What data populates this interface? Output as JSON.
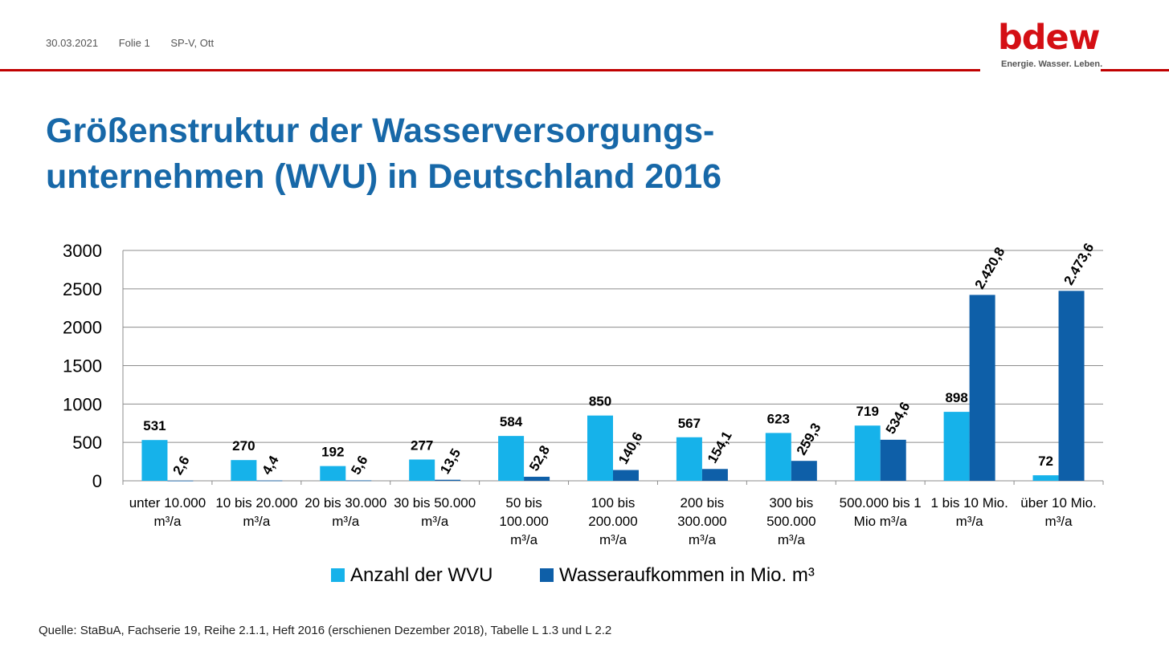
{
  "header": {
    "date": "30.03.2021",
    "slide": "Folie 1",
    "author": "SP-V, Ott",
    "logo_text": "bdew",
    "logo_tagline": "Energie. Wasser. Leben."
  },
  "title": {
    "line1": "Größenstruktur der Wasserversorgungs-",
    "line2": "unternehmen (WVU) in Deutschland 2016"
  },
  "colors": {
    "accent": "#c00000",
    "title": "#1768a8",
    "series1": "#16b2ea",
    "series2": "#0e5fa8"
  },
  "chart_data": {
    "type": "bar",
    "categories": [
      [
        "unter 10.000",
        "m³/a"
      ],
      [
        "10 bis 20.000",
        "m³/a"
      ],
      [
        "20 bis 30.000",
        "m³/a"
      ],
      [
        "30 bis 50.000",
        "m³/a"
      ],
      [
        "50 bis",
        "100.000",
        "m³/a"
      ],
      [
        "100 bis",
        "200.000",
        "m³/a"
      ],
      [
        "200 bis",
        "300.000",
        "m³/a"
      ],
      [
        "300 bis",
        "500.000",
        "m³/a"
      ],
      [
        "500.000 bis 1",
        "Mio m³/a"
      ],
      [
        "1 bis 10 Mio.",
        "m³/a"
      ],
      [
        "über 10 Mio.",
        "m³/a"
      ]
    ],
    "series": [
      {
        "name": "Anzahl der WVU",
        "values": [
          531,
          270,
          192,
          277,
          584,
          850,
          567,
          623,
          719,
          898,
          72
        ],
        "labels": [
          "531",
          "270",
          "192",
          "277",
          "584",
          "850",
          "567",
          "623",
          "719",
          "898",
          "72"
        ]
      },
      {
        "name": "Wasseraufkommen in Mio. m³",
        "values": [
          2.6,
          4.4,
          5.6,
          13.5,
          52.8,
          140.6,
          154.1,
          259.3,
          534.6,
          2420.8,
          2473.6
        ],
        "labels": [
          "2,6",
          "4,4",
          "5,6",
          "13,5",
          "52,8",
          "140,6",
          "154,1",
          "259,3",
          "534,6",
          "2.420,8",
          "2.473,6"
        ]
      }
    ],
    "yticks": [
      0,
      500,
      1000,
      1500,
      2000,
      2500,
      3000
    ],
    "ylim": [
      0,
      3000
    ],
    "grid": true,
    "legend_position": "bottom"
  },
  "source": "Quelle: StaBuA, Fachserie 19, Reihe 2.1.1, Heft 2016 (erschienen Dezember 2018), Tabelle L 1.3 und L 2.2"
}
